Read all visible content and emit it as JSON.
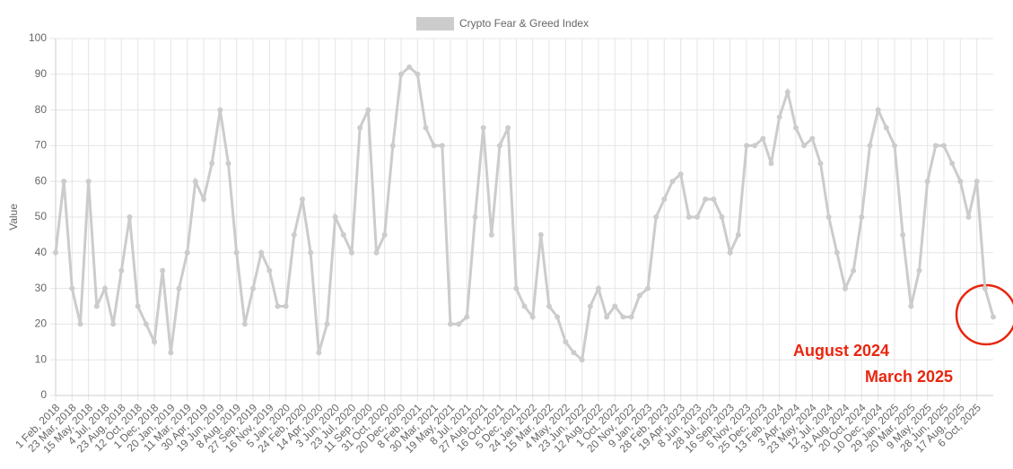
{
  "chart_data": {
    "type": "line",
    "y_label": "Value",
    "categories": [
      "1 Feb, 2018",
      null,
      "23 Mar, 2018",
      null,
      "15 May, 2018",
      null,
      "4 Jul, 2018",
      null,
      "23 Aug, 2018",
      null,
      "12 Oct, 2018",
      null,
      "1 Dec, 2018",
      null,
      "20 Jan, 2019",
      null,
      "11 Mar, 2019",
      null,
      "30 Apr, 2019",
      null,
      "19 Jun, 2019",
      null,
      "8 Aug, 2019",
      null,
      "27 Sep, 2019",
      null,
      "16 Nov, 2019",
      null,
      "5 Jan, 2020",
      null,
      "24 Feb, 2020",
      null,
      "14 Apr, 2020",
      null,
      "3 Jun, 2020",
      null,
      "23 Jul, 2020",
      null,
      "11 Sep, 2020",
      null,
      "31 Oct, 2020",
      null,
      "20 Dec, 2020",
      null,
      "8 Feb, 2021",
      null,
      "30 Mar, 2021",
      null,
      "19 May, 2021",
      null,
      "8 Jul, 2021",
      null,
      "27 Aug, 2021",
      null,
      "16 Oct, 2021",
      null,
      "5 Dec, 2021",
      null,
      "24 Jan, 2022",
      null,
      "15 Mar, 2022",
      null,
      "4 May, 2022",
      null,
      "23 Jun, 2022",
      null,
      "12 Aug, 2022",
      null,
      "1 Oct, 2022",
      null,
      "20 Nov, 2022",
      null,
      "9 Jan, 2023",
      null,
      "28 Feb, 2023",
      null,
      "19 Apr, 2023",
      null,
      "8 Jun, 2023",
      null,
      "28 Jul, 2023",
      null,
      "16 Sep, 2023",
      null,
      "5 Nov, 2023",
      null,
      "25 Dec, 2023",
      null,
      "13 Feb, 2024",
      null,
      "3 Apr, 2024",
      null,
      "23 May, 2024",
      null,
      "12 Jul, 2024",
      null,
      "31 Aug, 2024",
      null,
      "20 Oct, 2024",
      null,
      "10 Dec, 2024",
      null,
      "29 Jan, 2025",
      null,
      "20 Mar, 2025",
      null,
      "9 May, 2025",
      null,
      "28 Jun, 2025",
      null,
      "17 Aug, 2025",
      null,
      "6 Oct, 2025",
      null,
      null
    ],
    "series": [
      {
        "name": "Crypto Fear & Greed Index",
        "color": "#cccccc",
        "values": [
          40,
          60,
          30,
          20,
          60,
          25,
          30,
          20,
          35,
          50,
          25,
          20,
          15,
          35,
          12,
          30,
          40,
          60,
          55,
          65,
          80,
          65,
          40,
          20,
          30,
          40,
          35,
          25,
          25,
          45,
          55,
          40,
          12,
          20,
          50,
          45,
          40,
          75,
          80,
          40,
          45,
          70,
          90,
          92,
          90,
          75,
          70,
          70,
          20,
          20,
          22,
          50,
          75,
          45,
          70,
          75,
          30,
          25,
          22,
          45,
          25,
          22,
          15,
          12,
          10,
          25,
          30,
          22,
          25,
          22,
          22,
          28,
          30,
          50,
          55,
          60,
          62,
          50,
          50,
          55,
          55,
          50,
          40,
          45,
          70,
          70,
          72,
          65,
          78,
          85,
          75,
          70,
          72,
          65,
          50,
          40,
          30,
          35,
          50,
          70,
          80,
          75,
          70,
          45,
          25,
          35,
          60,
          70,
          70,
          65,
          60,
          50,
          60,
          30,
          22
        ]
      }
    ],
    "ylim": [
      0,
      100
    ],
    "yticks": [
      0,
      10,
      20,
      30,
      40,
      50,
      60,
      70,
      80,
      90,
      100
    ],
    "grid": true,
    "annotations": [
      "August 2024",
      "March 2025"
    ]
  }
}
